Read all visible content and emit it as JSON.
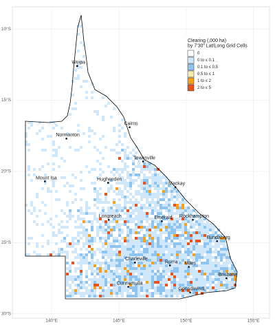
{
  "chart_data": {
    "type": "map",
    "xlim": [
      137.08,
      156.2
    ],
    "ylim": [
      -30.3,
      -8.45
    ],
    "xticks": [
      {
        "value": 140,
        "label": "140°E"
      },
      {
        "value": 145,
        "label": "145°E"
      },
      {
        "value": 150,
        "label": "150°E"
      },
      {
        "value": 155,
        "label": "155°E"
      }
    ],
    "yticks": [
      {
        "value": -10,
        "label": "10°S"
      },
      {
        "value": -15,
        "label": "15°S"
      },
      {
        "value": -20,
        "label": "20°S"
      },
      {
        "value": -25,
        "label": "25°S"
      },
      {
        "value": -30,
        "label": "30°S"
      }
    ],
    "grid": true,
    "legend": {
      "title": [
        "Clearing (,000 ha)",
        "by 7'30\" Lat/Long Grid Cells"
      ],
      "items": [
        {
          "label": "0",
          "color": "#ffffff"
        },
        {
          "label": "0  to ≤ 0.1",
          "color": "#cfe7f8"
        },
        {
          "label": "0.1  to ≤ 0.5",
          "color": "#8ec4ee"
        },
        {
          "label": "0.5  to ≤ 1",
          "color": "#fbeab0"
        },
        {
          "label": "1  to ≤ 2",
          "color": "#f4a21e"
        },
        {
          "label": "2  to ≤ 5",
          "color": "#e8531b"
        }
      ]
    },
    "places": [
      {
        "name": "Weipa",
        "lon": 141.9,
        "lat": -12.6
      },
      {
        "name": "Normanton",
        "lon": 141.1,
        "lat": -17.7
      },
      {
        "name": "Cairns",
        "lon": 145.8,
        "lat": -16.9
      },
      {
        "name": "Townsville",
        "lon": 146.8,
        "lat": -19.3
      },
      {
        "name": "Mount Isa",
        "lon": 139.5,
        "lat": -20.7
      },
      {
        "name": "Hughenden",
        "lon": 144.2,
        "lat": -20.8
      },
      {
        "name": "Mackay",
        "lon": 149.2,
        "lat": -21.1
      },
      {
        "name": "Longreach",
        "lon": 144.25,
        "lat": -23.4
      },
      {
        "name": "Emerald",
        "lon": 148.2,
        "lat": -23.5
      },
      {
        "name": "Rockhampton",
        "lon": 150.5,
        "lat": -23.4
      },
      {
        "name": "Bundaberg",
        "lon": 152.3,
        "lat": -24.9
      },
      {
        "name": "Charleville",
        "lon": 146.2,
        "lat": -26.4
      },
      {
        "name": "Roma",
        "lon": 148.8,
        "lat": -26.6
      },
      {
        "name": "Miles",
        "lon": 150.2,
        "lat": -26.7
      },
      {
        "name": "Brisbane",
        "lon": 153.0,
        "lat": -27.5
      },
      {
        "name": "Cunnamulla",
        "lon": 145.7,
        "lat": -28.1
      },
      {
        "name": "Goondiwindi",
        "lon": 150.3,
        "lat": -28.5
      }
    ]
  }
}
